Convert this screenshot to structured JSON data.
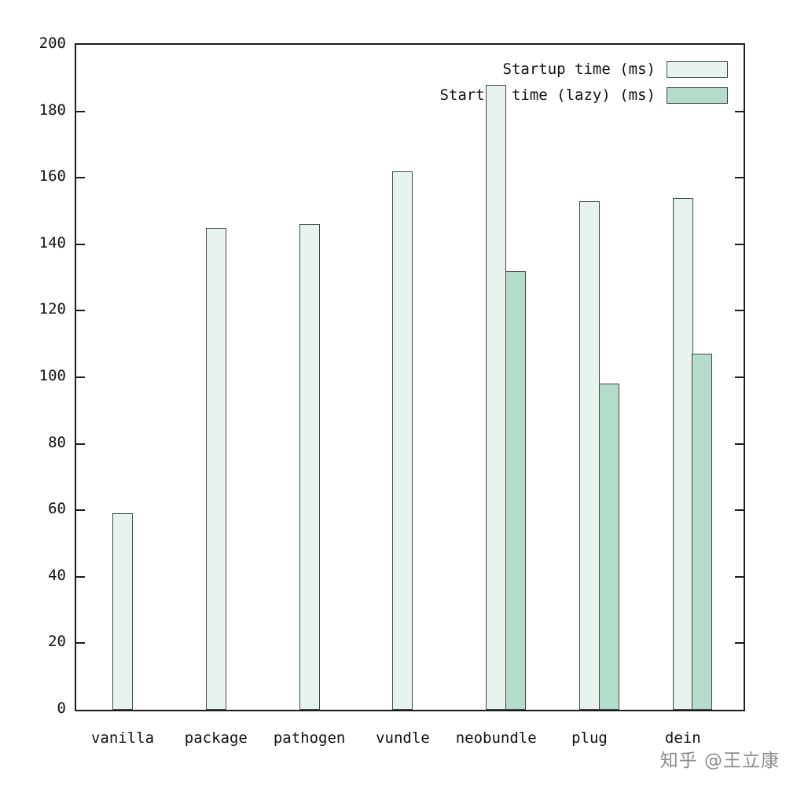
{
  "watermark": {
    "text": "知乎 @王立康"
  },
  "chart_data": {
    "type": "bar",
    "title": "",
    "xlabel": "",
    "ylabel": "",
    "categories": [
      "vanilla",
      "package",
      "pathogen",
      "vundle",
      "neobundle",
      "plug",
      "dein"
    ],
    "series": [
      {
        "name": "Startup time (ms)",
        "color": "#e8f3ee",
        "values": [
          59,
          145,
          146,
          162,
          188,
          153,
          154
        ]
      },
      {
        "name": "Startup time (lazy) (ms)",
        "color": "#b4dcca",
        "values": [
          null,
          null,
          null,
          null,
          132,
          98,
          107
        ]
      }
    ],
    "ylim": [
      0,
      200
    ],
    "ytick_step": 20,
    "grid": false,
    "legend_position": "top-right",
    "bar_border_color": "#3f4a45",
    "axis_color": "#1c1c1c"
  }
}
